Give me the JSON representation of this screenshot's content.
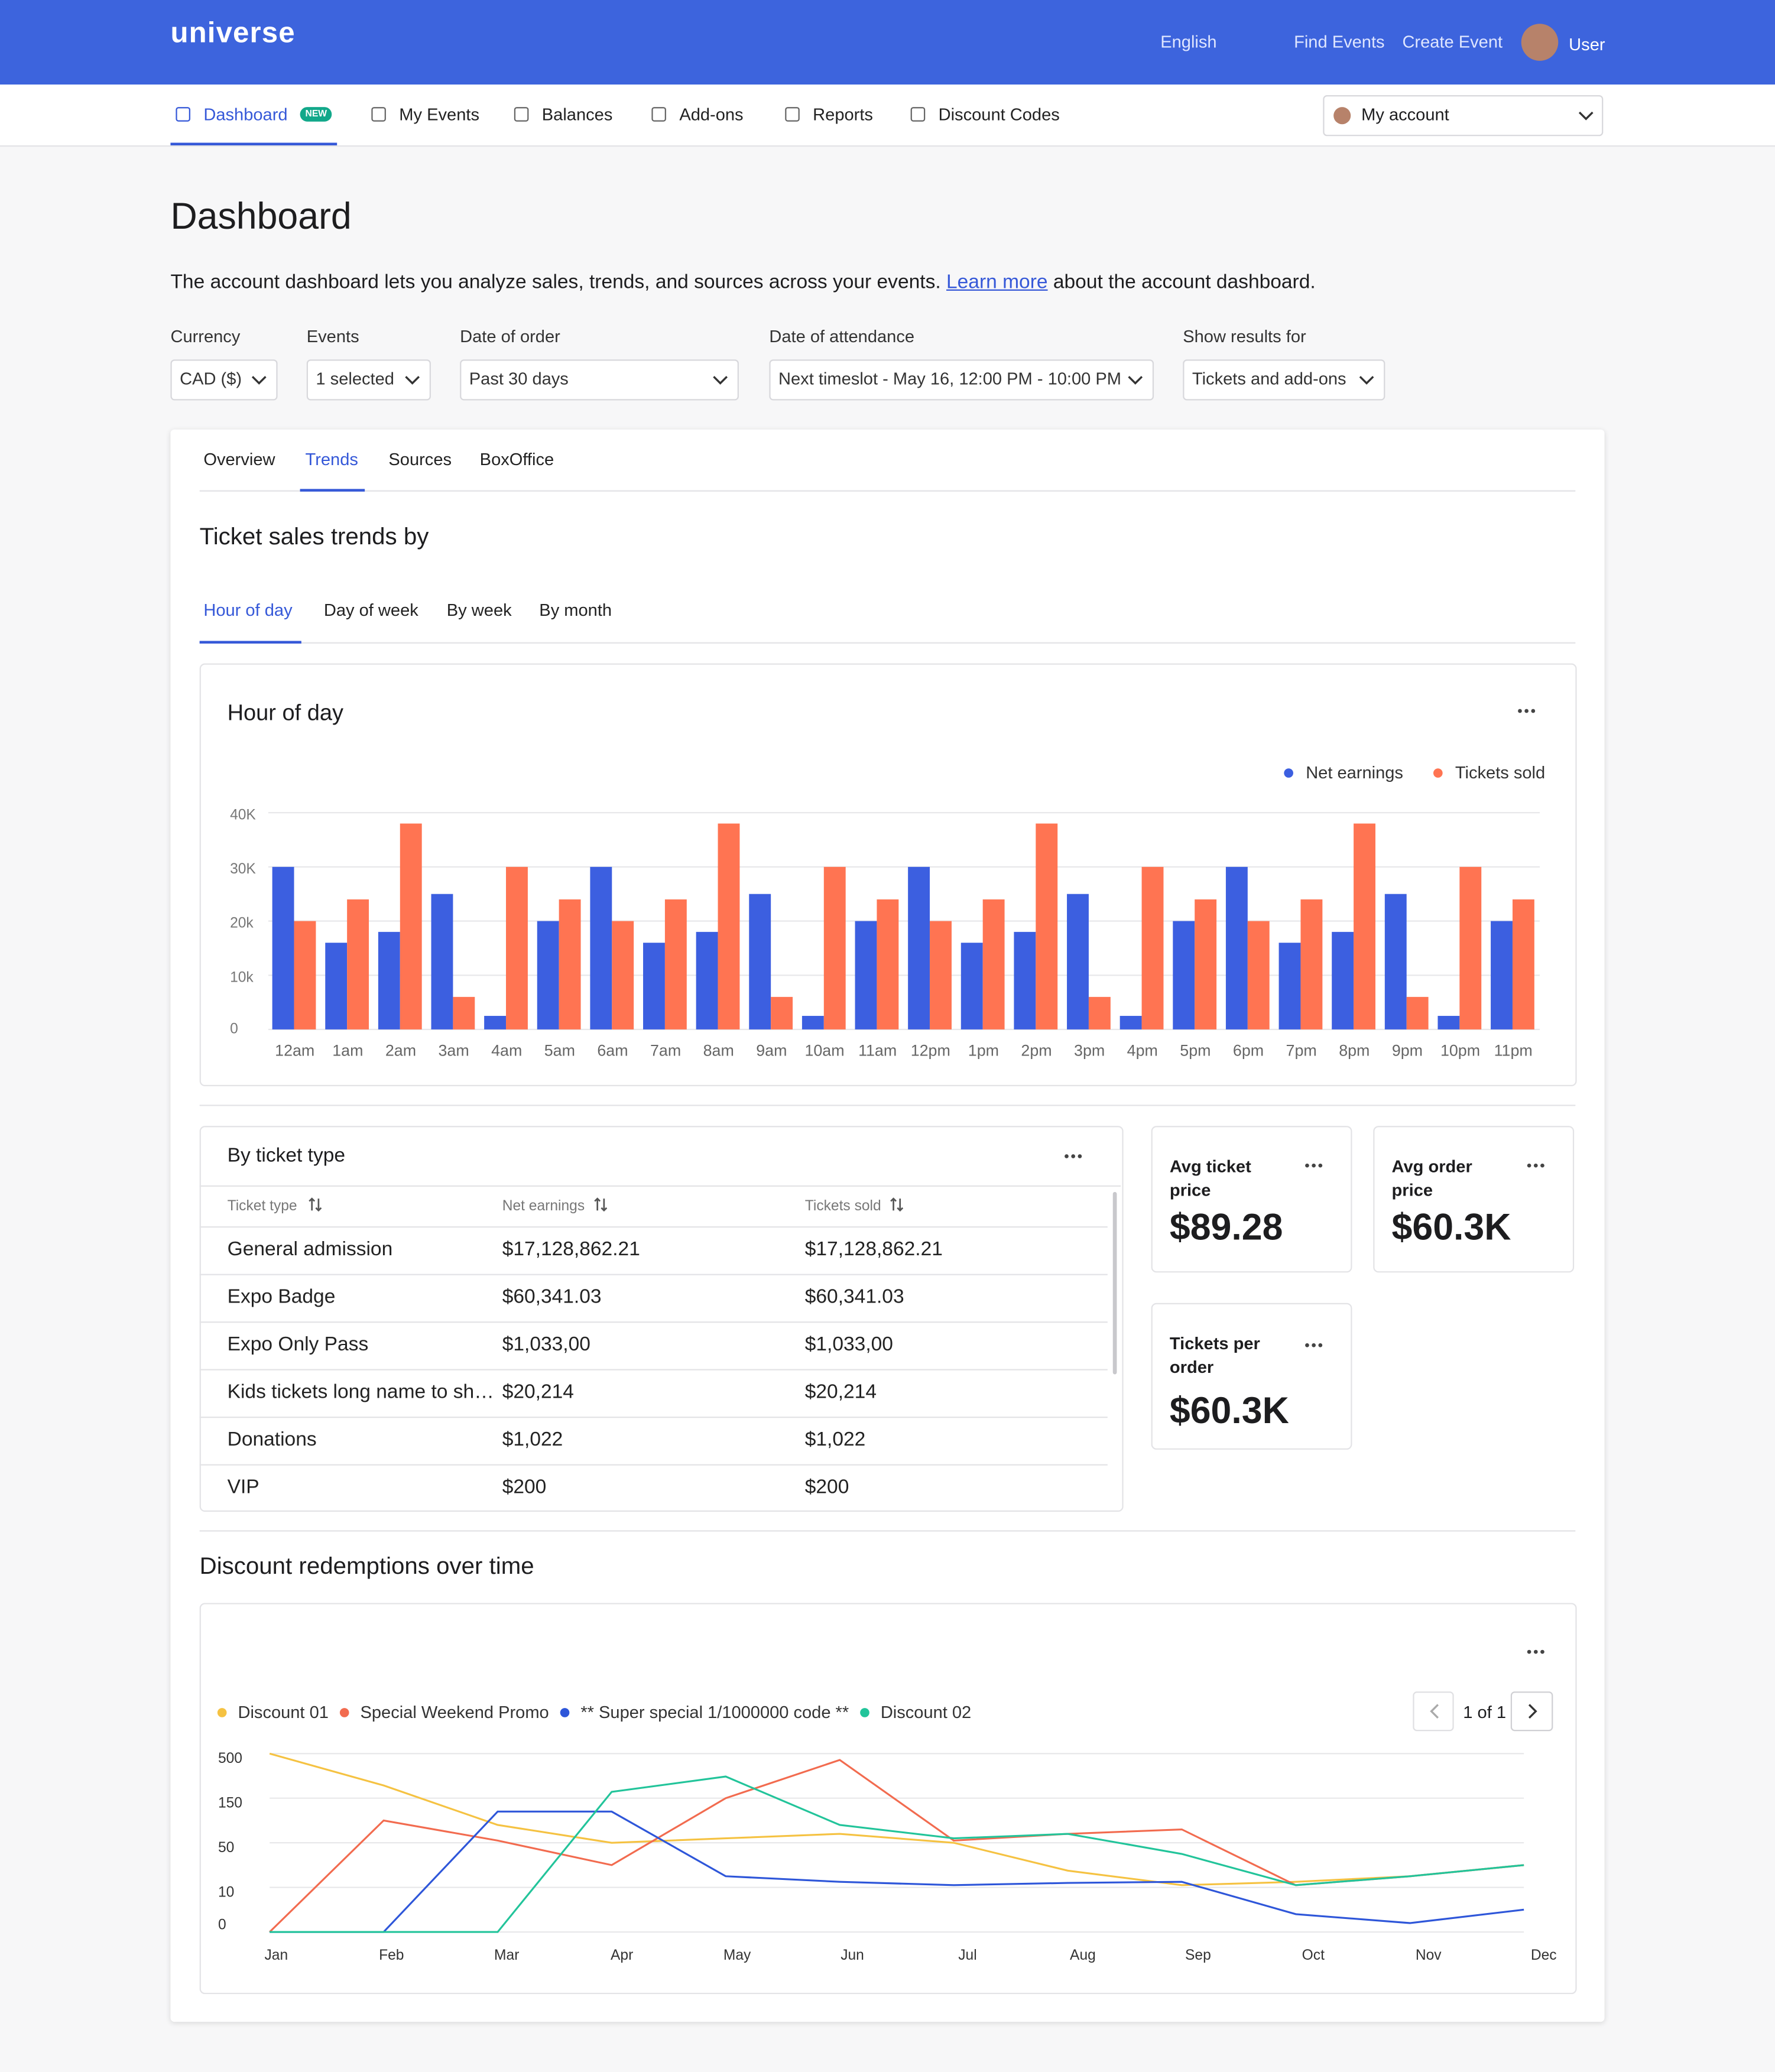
{
  "header": {
    "logo": "universe",
    "language": "English",
    "links": [
      "Find Events",
      "Create Event"
    ],
    "user": "User"
  },
  "nav": {
    "items": [
      {
        "label": "Dashboard",
        "badge": "NEW"
      },
      {
        "label": "My Events"
      },
      {
        "label": "Balances"
      },
      {
        "label": "Add-ons"
      },
      {
        "label": "Reports"
      },
      {
        "label": "Discount Codes"
      }
    ],
    "account": "My account"
  },
  "page": {
    "title": "Dashboard",
    "description_before": "The account dashboard lets you analyze sales, trends, and sources across your events.",
    "link": "Learn more",
    "description_after": "about the account dashboard."
  },
  "filters": [
    {
      "label": "Currency",
      "value": "CAD ($)"
    },
    {
      "label": "Events",
      "value": "1 selected"
    },
    {
      "label": "Date of order",
      "value": "Past 30 days"
    },
    {
      "label": "Date of attendance",
      "value": "Next timeslot - May 16, 12:00 PM - 10:00 PM"
    },
    {
      "label": "Show results for",
      "value": "Tickets and add-ons"
    }
  ],
  "tabs": [
    "Overview",
    "Trends",
    "Sources",
    "BoxOffice"
  ],
  "section_title": "Ticket sales trends by",
  "subtabs": [
    "Hour of day",
    "Day of week",
    "By week",
    "By month"
  ],
  "chart_data": [
    {
      "type": "bar",
      "title": "Hour of day",
      "categories": [
        "12am",
        "1am",
        "2am",
        "3am",
        "4am",
        "5am",
        "6am",
        "7am",
        "8am",
        "9am",
        "10am",
        "11am",
        "12pm",
        "1pm",
        "2pm",
        "3pm",
        "4pm",
        "5pm",
        "6pm",
        "7pm",
        "8pm",
        "9pm",
        "10pm",
        "11pm"
      ],
      "series": [
        {
          "name": "Net earnings",
          "color": "#3c5fe0",
          "values": [
            30000,
            16000,
            18000,
            25000,
            2500,
            20000,
            30000,
            16000,
            18000,
            25000,
            2500,
            20000,
            30000,
            16000,
            18000,
            25000,
            2500,
            20000,
            30000,
            16000,
            18000,
            25000,
            2500,
            20000
          ]
        },
        {
          "name": "Tickets sold",
          "color": "#ff7452",
          "values": [
            20000,
            24000,
            38000,
            6000,
            30000,
            24000,
            20000,
            24000,
            38000,
            6000,
            30000,
            24000,
            20000,
            24000,
            38000,
            6000,
            30000,
            24000,
            20000,
            24000,
            38000,
            6000,
            30000,
            24000
          ]
        }
      ],
      "ylim": [
        0,
        40000
      ],
      "yticks": [
        0,
        {
          "value": 10000,
          "label": "10k"
        },
        {
          "value": 20000,
          "label": "20k"
        },
        {
          "value": 30000,
          "label": "30K"
        },
        {
          "value": 40000,
          "label": "40K"
        }
      ],
      "grid": true,
      "legend": "top-right"
    },
    {
      "type": "line",
      "title": "Discount redemptions over time",
      "categories": [
        "Jan",
        "Feb",
        "Mar",
        "Apr",
        "May",
        "Jun",
        "Jul",
        "Aug",
        "Sep",
        "Oct",
        "Nov",
        "Dec"
      ],
      "series": [
        {
          "name": "Discount 01",
          "color": "#f5c242",
          "values": [
            500,
            250,
            90,
            50,
            60,
            70,
            50,
            25,
            12,
            15,
            20,
            30
          ]
        },
        {
          "name": "Special Weekend Promo",
          "color": "#f26b4f",
          "values": [
            0,
            100,
            55,
            30,
            150,
            450,
            55,
            70,
            80,
            12,
            20,
            30
          ]
        },
        {
          "name": "** Super special 1/1000000 code **",
          "color": "#2e56d9",
          "values": [
            0,
            0,
            120,
            120,
            20,
            15,
            12,
            14,
            15,
            4,
            2,
            5
          ]
        },
        {
          "name": "Discount 02",
          "color": "#22c49a",
          "values": [
            0,
            0,
            0,
            200,
            320,
            90,
            60,
            70,
            40,
            12,
            20,
            30
          ]
        }
      ],
      "ylim": [
        0,
        500
      ],
      "yticks": [
        0,
        10,
        50,
        150,
        500
      ],
      "grid": true,
      "legend": "top-left"
    }
  ],
  "ticket_table": {
    "title": "By ticket type",
    "columns": [
      "Ticket type",
      "Net earnings",
      "Tickets sold"
    ],
    "rows": [
      [
        "General admission",
        "$17,128,862.21",
        "$17,128,862.21"
      ],
      [
        "Expo Badge",
        "$60,341.03",
        "$60,341.03"
      ],
      [
        "Expo Only Pass",
        "$1,033,00",
        "$1,033,00"
      ],
      [
        "Kids tickets long name to sh…",
        "$20,214",
        "$20,214"
      ],
      [
        "Donations",
        "$1,022",
        "$1,022"
      ],
      [
        "VIP",
        "$200",
        "$200"
      ]
    ]
  },
  "stats": [
    {
      "label": "Avg ticket price",
      "value": "$89.28"
    },
    {
      "label": "Avg order price",
      "value": "$60.3K"
    },
    {
      "label": "Tickets per order",
      "value": "$60.3K"
    }
  ],
  "pagination": "1 of 1"
}
